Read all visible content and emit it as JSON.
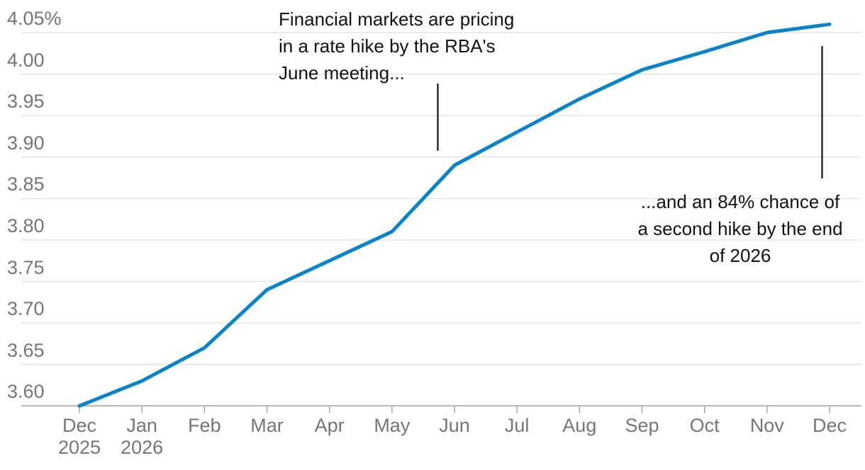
{
  "chart_data": {
    "type": "line",
    "title": "",
    "unit_suffix_on_top_tick": "%",
    "x_months": [
      "Dec",
      "Jan",
      "Feb",
      "Mar",
      "Apr",
      "May",
      "Jun",
      "Jul",
      "Aug",
      "Sep",
      "Oct",
      "Nov",
      "Dec"
    ],
    "x_year_labels": [
      {
        "month_index": 0,
        "label": "2025"
      },
      {
        "month_index": 1,
        "label": "2026"
      }
    ],
    "series": [
      {
        "name": "implied-rba-cash-rate",
        "values": [
          3.6,
          3.63,
          3.67,
          3.74,
          3.775,
          3.81,
          3.89,
          3.93,
          3.97,
          4.005,
          4.027,
          4.05,
          4.06
        ]
      }
    ],
    "yticks": [
      3.6,
      3.65,
      3.7,
      3.75,
      3.8,
      3.85,
      3.9,
      3.95,
      4.0,
      4.05
    ],
    "ytick_labels": [
      "3.60",
      "3.65",
      "3.70",
      "3.75",
      "3.80",
      "3.85",
      "3.90",
      "3.95",
      "4.00",
      "4.05%"
    ],
    "ylim": [
      3.6,
      4.06
    ],
    "grid": "horizontal",
    "legend": "none",
    "colors": {
      "line": "#0a84c8",
      "gridline": "#d9d9d9",
      "axis": "#9c9c9c",
      "tick_text": "#757575",
      "annotation_text": "#121212",
      "callout_line": "#121212",
      "background": "#ffffff"
    },
    "annotations": [
      {
        "id": "june-hike",
        "lines": [
          "Financial markets are pricing",
          "in a rate hike by the RBA's",
          "June meeting..."
        ],
        "align": "left"
      },
      {
        "id": "second-hike-2026",
        "lines": [
          "...and an 84% chance of",
          "a second hike by the end",
          "of 2026"
        ],
        "align": "center"
      }
    ]
  }
}
